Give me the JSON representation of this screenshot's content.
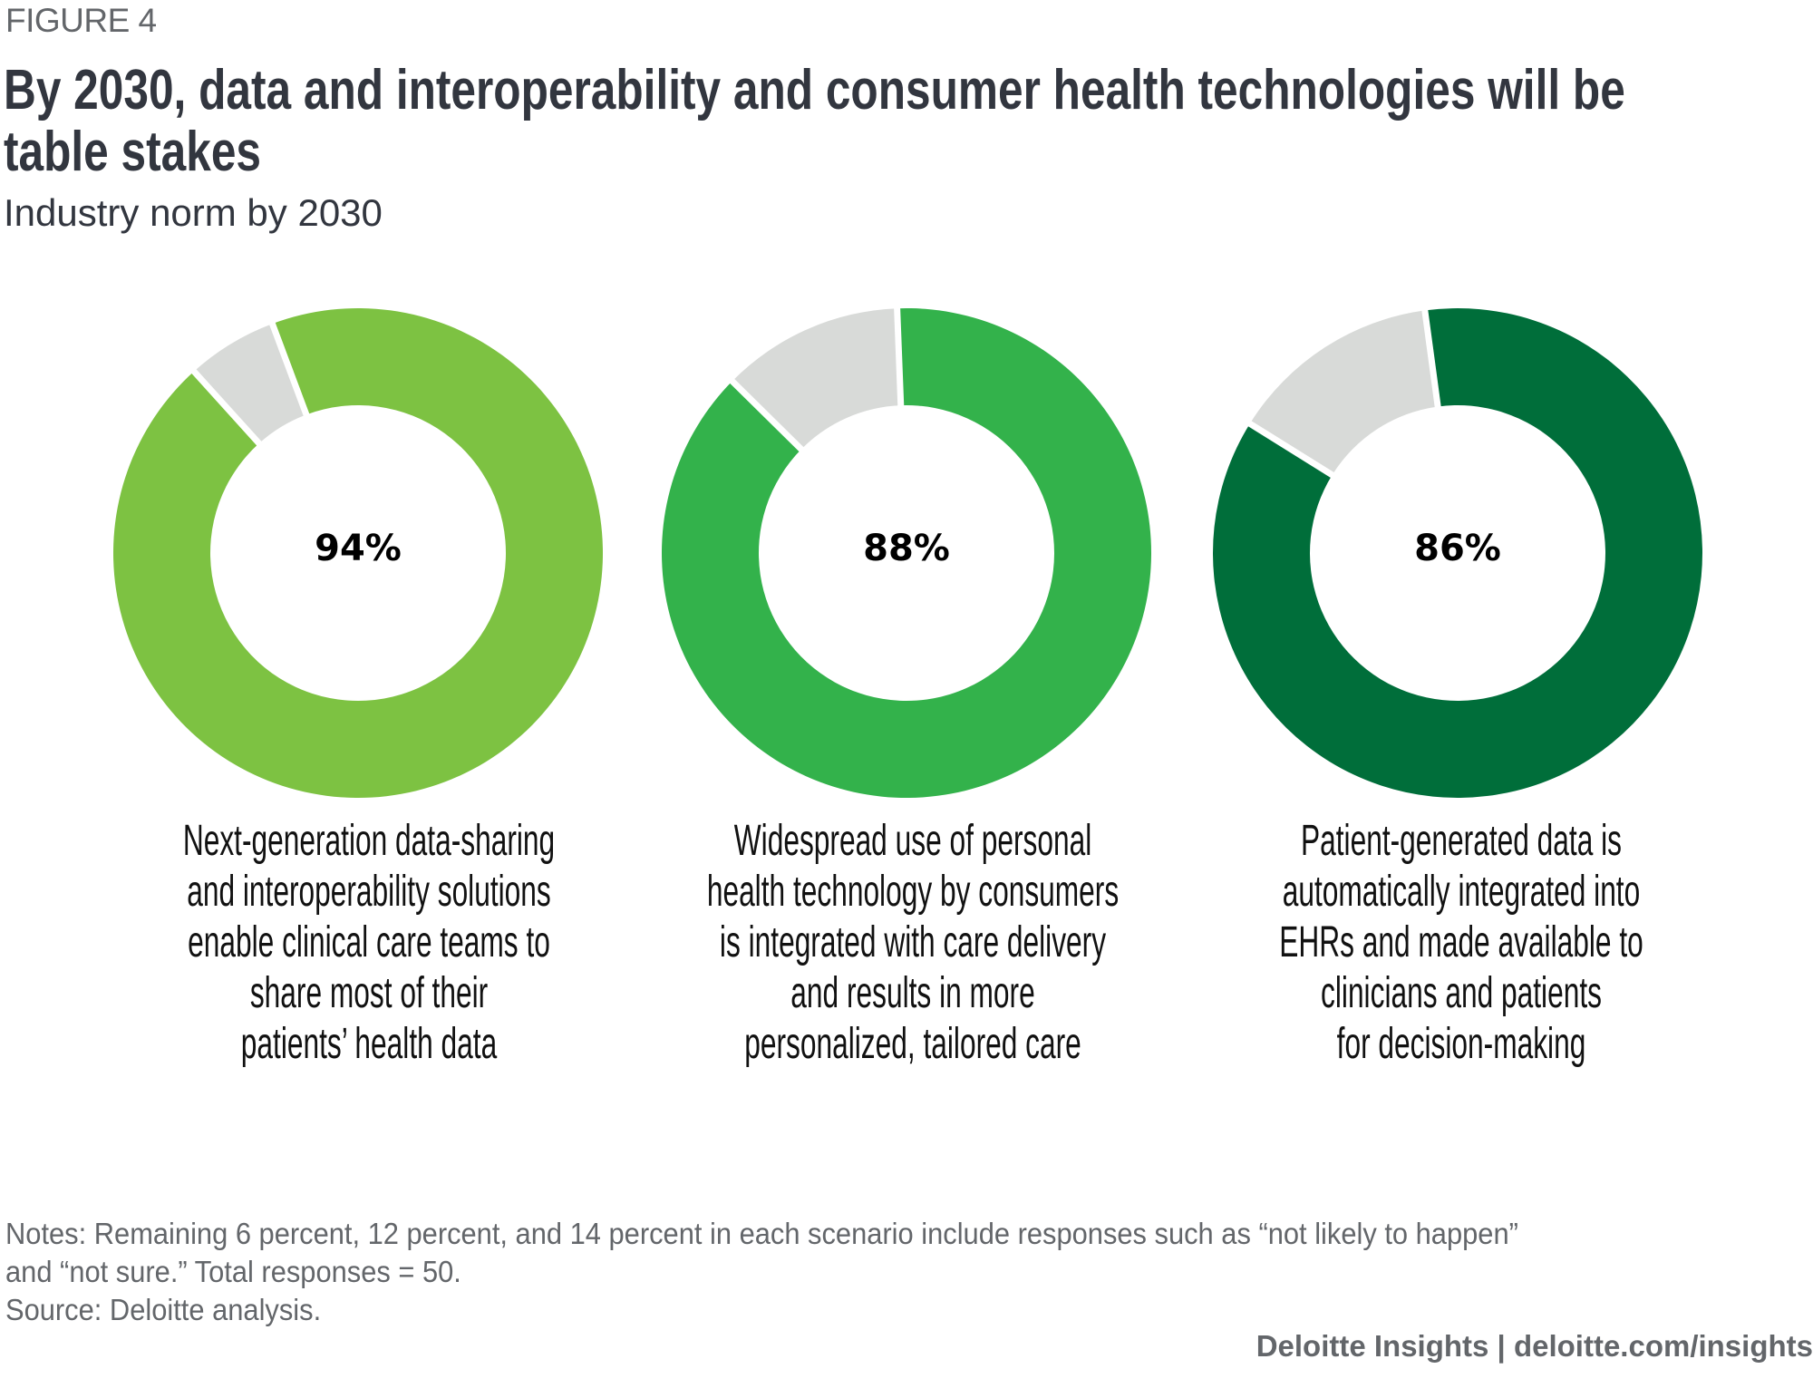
{
  "figure_label": "FIGURE 4",
  "title_lines": [
    "By 2030, data and interoperability and consumer health technologies will be",
    "table stakes"
  ],
  "subtitle": "Industry norm by 2030",
  "colors": {
    "remaining": "#d8dad8",
    "separator": "#ffffff",
    "title": "#32363f",
    "muted": "#63666a"
  },
  "chart_data": {
    "type": "pie",
    "subtype": "donut",
    "title": "By 2030, data and interoperability and consumer health technologies will be table stakes",
    "subtitle": "Industry norm by 2030",
    "unit": "percent",
    "charts": [
      {
        "value": 94,
        "remaining": 6,
        "value_label": "94%",
        "color": "#7dc242",
        "description_lines": [
          "Next-generation data-sharing",
          "and interoperability solutions",
          "enable clinical care teams to",
          "share most of their",
          "patients’ health data"
        ]
      },
      {
        "value": 88,
        "remaining": 12,
        "value_label": "88%",
        "color": "#33b24b",
        "description_lines": [
          "Widespread use of personal",
          "health technology by consumers",
          "is integrated with care delivery",
          "and results in more",
          "personalized, tailored care"
        ]
      },
      {
        "value": 86,
        "remaining": 14,
        "value_label": "86%",
        "color": "#006e3a",
        "description_lines": [
          "Patient-generated data is",
          "automatically integrated into",
          "EHRs and made available to",
          "clinicians and patients",
          "for decision-making"
        ]
      }
    ]
  },
  "notes_lines": [
    "Notes: Remaining 6 percent, 12 percent, and 14 percent in each scenario include responses such as “not likely to happen”",
    "and “not sure.” Total responses = 50.",
    "Source: Deloitte analysis."
  ],
  "footer": "Deloitte Insights | deloitte.com/insights"
}
